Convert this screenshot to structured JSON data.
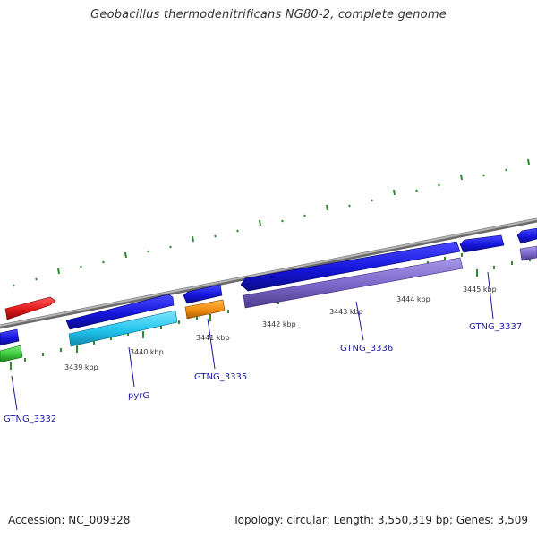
{
  "title": "Geobacillus thermodenitrificans NG80-2, complete genome",
  "footer": {
    "accession": "Accession: NC_009328",
    "info": "Topology: circular; Length: 3,550,319 bp; Genes: 3,509"
  },
  "scale_labels": [
    "3439 kbp",
    "3440 kbp",
    "3441 kbp",
    "3442 kbp",
    "3443 kbp",
    "3444 kbp",
    "3445 kbp"
  ],
  "gene_labels": [
    "GTNG_3332",
    "pyrG",
    "GTNG_3335",
    "GTNG_3336",
    "GTNG_3337"
  ],
  "colors": {
    "backbone": "#8a8a8a",
    "tick": "#2e8b2e",
    "blue": "#1515dd",
    "cyan": "#22c4ee",
    "orange": "#f08c10",
    "purple": "#7a66c8",
    "red": "#e01818",
    "green": "#3ac83a",
    "label": "#1a1aa0"
  }
}
